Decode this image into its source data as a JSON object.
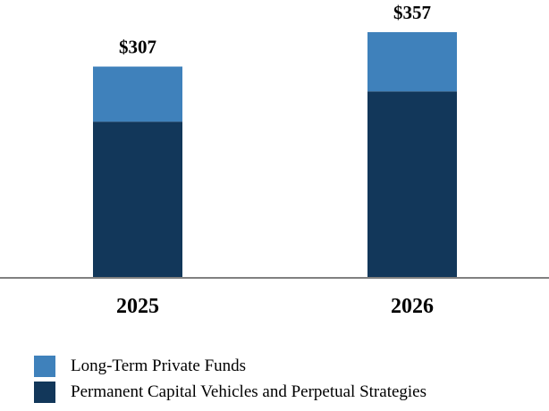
{
  "chart_data": {
    "type": "bar",
    "stacked": true,
    "categories": [
      "2025",
      "2026"
    ],
    "totals": [
      "$307",
      "$357"
    ],
    "series": [
      {
        "name": "Permanent Capital Vehicles and Perpetual Strategies",
        "values": [
          227,
          271
        ],
        "color": "#12375a"
      },
      {
        "name": "Long-Term Private Funds",
        "values": [
          80,
          86
        ],
        "color": "#3f81bb"
      }
    ],
    "ylim": [
      0,
      357
    ],
    "grid": false,
    "legend_position": "bottom-left",
    "title": "",
    "xlabel": "",
    "ylabel": ""
  },
  "legend": {
    "items": [
      {
        "label": "Long-Term Private Funds",
        "color": "#3f81bb"
      },
      {
        "label": "Permanent Capital Vehicles and Perpetual Strategies",
        "color": "#12375a"
      }
    ]
  }
}
